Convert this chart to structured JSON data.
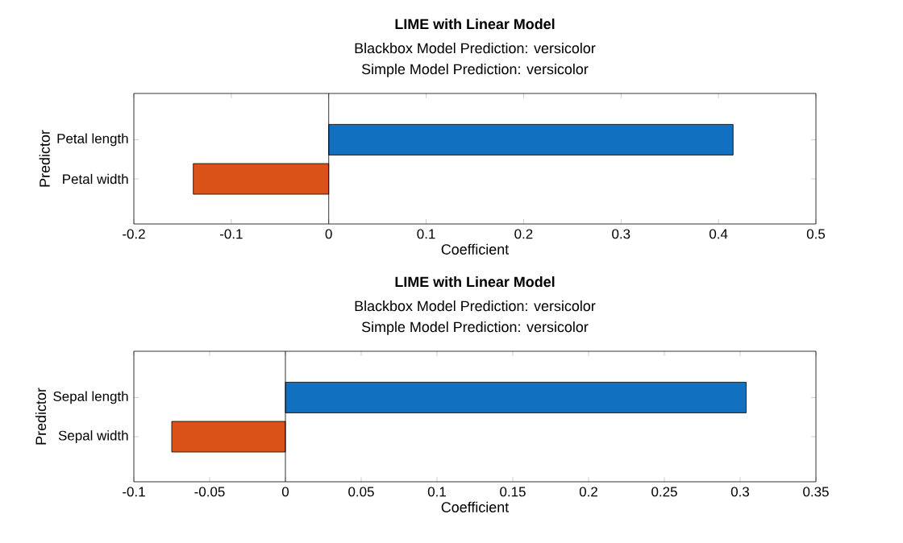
{
  "chart_data": [
    {
      "type": "bar",
      "orientation": "horizontal",
      "title": "LIME with Linear Model",
      "subtitle": "Blackbox Model Prediction: versicolor",
      "annotations": [
        "Simple Model Prediction: versicolor"
      ],
      "xlabel": "Coefficient",
      "ylabel": "Predictor",
      "categories": [
        "Petal length",
        "Petal width"
      ],
      "values": [
        0.415,
        -0.139
      ],
      "colors": [
        "#1170c0",
        "#d95319"
      ],
      "xlim": [
        -0.2,
        0.5
      ],
      "xticks": [
        -0.2,
        -0.1,
        0,
        0.1,
        0.2,
        0.3,
        0.4,
        0.5
      ],
      "ref_lines": [
        {
          "axis": "x",
          "value": 0,
          "color": "#000000"
        }
      ],
      "grid": false
    },
    {
      "type": "bar",
      "orientation": "horizontal",
      "title": "LIME with Linear Model",
      "subtitle": "Blackbox Model Prediction: versicolor",
      "annotations": [
        "Simple Model Prediction: versicolor"
      ],
      "xlabel": "Coefficient",
      "ylabel": "Predictor",
      "categories": [
        "Sepal length",
        "Sepal width"
      ],
      "values": [
        0.304,
        -0.075
      ],
      "colors": [
        "#1170c0",
        "#d95319"
      ],
      "xlim": [
        -0.1,
        0.35
      ],
      "xticks": [
        -0.1,
        -0.05,
        0,
        0.05,
        0.1,
        0.15,
        0.2,
        0.25,
        0.3,
        0.35
      ],
      "ref_lines": [
        {
          "axis": "x",
          "value": 0,
          "color": "#000000"
        }
      ],
      "grid": false
    }
  ]
}
